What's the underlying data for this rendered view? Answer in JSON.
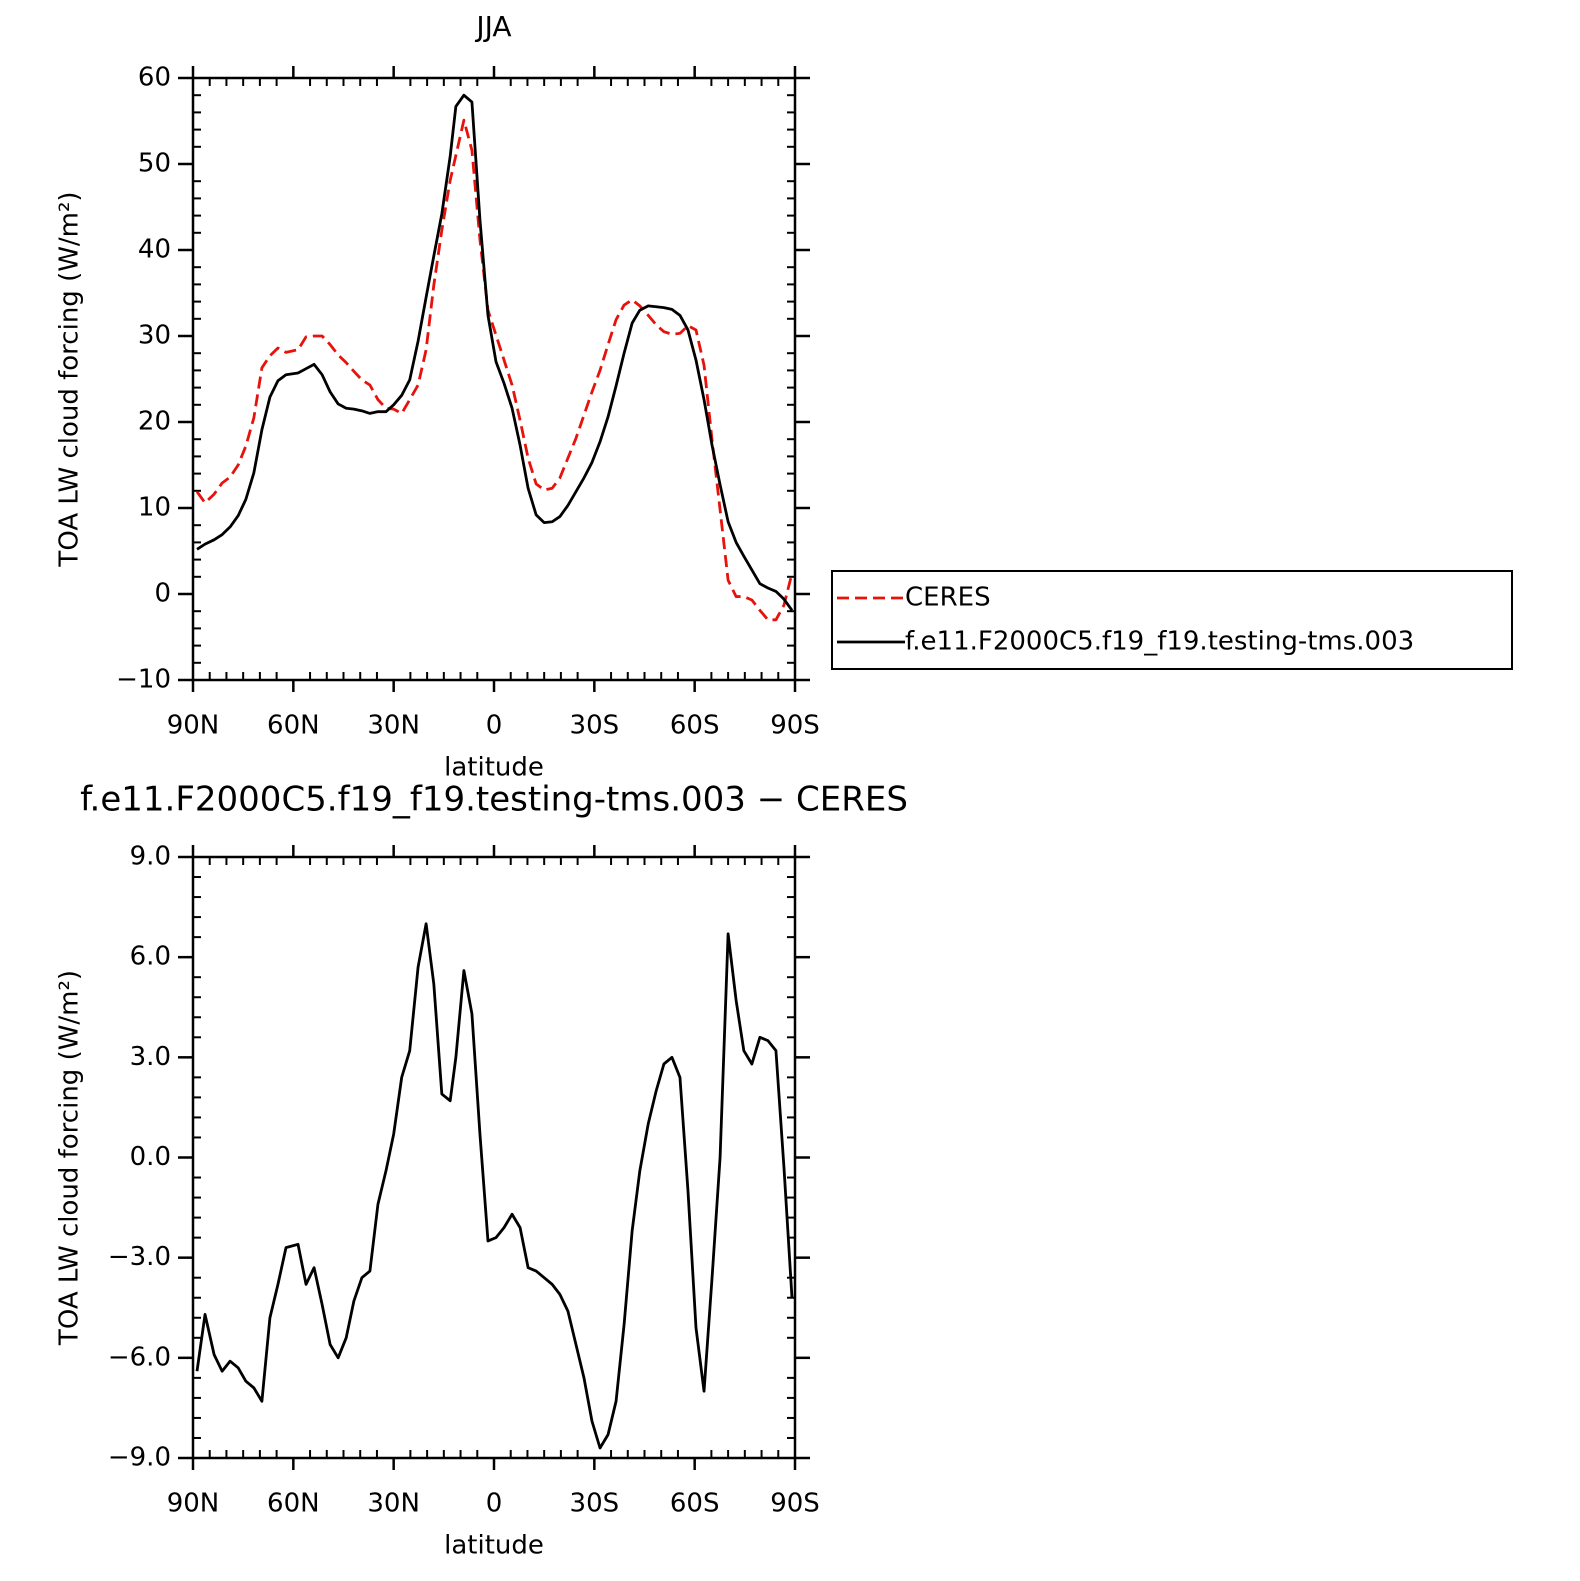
{
  "chart_data": [
    {
      "type": "line",
      "title": "JJA",
      "xlabel": "latitude",
      "ylabel": "TOA LW cloud forcing (W/m²)",
      "x": [
        88.8,
        86.4,
        83.7,
        81.3,
        78.9,
        76.5,
        74.2,
        71.8,
        69.4,
        67.0,
        64.6,
        62.2,
        58.6,
        56.2,
        53.8,
        51.4,
        49.0,
        46.6,
        44.2,
        41.9,
        39.5,
        37.1,
        34.7,
        32.3,
        30.0,
        27.6,
        25.2,
        22.7,
        20.3,
        18.0,
        15.6,
        13.1,
        11.4,
        9.0,
        6.6,
        4.2,
        1.8,
        -0.6,
        -3.0,
        -5.4,
        -7.8,
        -10.2,
        -12.6,
        -15.0,
        -17.4,
        -19.7,
        -22.1,
        -24.5,
        -26.9,
        -29.3,
        -31.7,
        -34.1,
        -36.5,
        -38.9,
        -41.3,
        -43.6,
        -46.1,
        -48.5,
        -50.8,
        -53.2,
        -55.6,
        -58.0,
        -60.4,
        -62.8,
        -65.2,
        -67.6,
        -70.0,
        -72.4,
        -74.7,
        -77.1,
        -79.5,
        -81.9,
        -84.3,
        -86.7,
        -89.1
      ],
      "xlim": [
        90,
        -90
      ],
      "xticks": [
        {
          "value": 90,
          "label": "90N"
        },
        {
          "value": 60,
          "label": "60N"
        },
        {
          "value": 30,
          "label": "30N"
        },
        0,
        {
          "value": -30,
          "label": "30S"
        },
        {
          "value": -60,
          "label": "60S"
        },
        {
          "value": -90,
          "label": "90S"
        }
      ],
      "ylim": [
        -10,
        60
      ],
      "yticks": [
        {
          "value": -10,
          "label": "−10"
        },
        0,
        10,
        20,
        30,
        40,
        50,
        60
      ],
      "legend": "right",
      "series": [
        {
          "name": "CERES",
          "color": "#e8120c",
          "dashed": true,
          "values": [
            11.9,
            10.6,
            11.6,
            12.9,
            13.6,
            15.0,
            17.2,
            20.5,
            26.3,
            27.7,
            28.6,
            28.1,
            28.4,
            29.9,
            30.0,
            30.0,
            29.0,
            27.8,
            26.9,
            25.9,
            24.9,
            24.3,
            22.6,
            21.6,
            21.5,
            21.0,
            22.6,
            24.3,
            28.4,
            35.9,
            42.3,
            48.1,
            51.0,
            55.1,
            51.6,
            41.2,
            33.0,
            30.1,
            27.2,
            24.3,
            20.2,
            15.8,
            12.8,
            12.1,
            12.3,
            13.5,
            15.8,
            18.1,
            20.8,
            23.5,
            26.0,
            29.0,
            31.9,
            33.6,
            34.2,
            33.5,
            32.4,
            31.3,
            30.5,
            30.2,
            30.3,
            31.2,
            30.7,
            26.6,
            17.9,
            9.8,
            1.6,
            -0.3,
            -0.3,
            -0.7,
            -1.9,
            -3.0,
            -3.0,
            -1.3,
            2.4
          ]
        },
        {
          "name": "f.e11.F2000C5.f19_f19.testing-tms.003",
          "color": "#000000",
          "dashed": false,
          "values": [
            5.2,
            5.8,
            6.3,
            6.9,
            7.8,
            9.1,
            11.0,
            14.1,
            19.1,
            22.9,
            24.8,
            25.5,
            25.7,
            26.2,
            26.7,
            25.5,
            23.5,
            22.1,
            21.6,
            21.5,
            21.3,
            21.0,
            21.2,
            21.2,
            22.0,
            23.1,
            24.9,
            29.4,
            34.5,
            39.3,
            44.2,
            50.9,
            56.7,
            58.0,
            57.2,
            43.5,
            32.4,
            27.0,
            24.5,
            21.6,
            17.3,
            12.3,
            9.2,
            8.3,
            8.4,
            9.0,
            10.3,
            11.9,
            13.5,
            15.3,
            17.7,
            20.6,
            24.2,
            28.0,
            31.5,
            33.0,
            33.5,
            33.4,
            33.3,
            33.1,
            32.4,
            30.7,
            27.2,
            22.6,
            17.3,
            12.7,
            8.4,
            6.0,
            4.4,
            2.8,
            1.2,
            0.7,
            0.3,
            -0.6,
            -1.9
          ]
        }
      ]
    },
    {
      "type": "line",
      "title": "f.e11.F2000C5.f19_f19.testing-tms.003 − CERES",
      "xlabel": "latitude",
      "ylabel": "TOA LW cloud forcing (W/m²)",
      "x": [
        88.8,
        86.4,
        83.7,
        81.3,
        78.9,
        76.5,
        74.2,
        71.8,
        69.4,
        67.0,
        64.6,
        62.2,
        58.6,
        56.2,
        53.8,
        51.4,
        49.0,
        46.6,
        44.2,
        41.9,
        39.5,
        37.1,
        34.7,
        32.3,
        30.0,
        27.6,
        25.2,
        22.7,
        20.3,
        18.0,
        15.6,
        13.1,
        11.4,
        9.0,
        6.6,
        4.2,
        1.8,
        -0.6,
        -3.0,
        -5.4,
        -7.8,
        -10.2,
        -12.6,
        -15.0,
        -17.4,
        -19.7,
        -22.1,
        -24.5,
        -26.9,
        -29.3,
        -31.7,
        -34.1,
        -36.5,
        -38.9,
        -41.3,
        -43.6,
        -46.1,
        -48.5,
        -50.8,
        -53.2,
        -55.6,
        -58.0,
        -60.4,
        -62.8,
        -65.2,
        -67.6,
        -70.0,
        -72.4,
        -74.7,
        -77.1,
        -79.5,
        -81.9,
        -84.3,
        -86.7,
        -89.1
      ],
      "xlim": [
        90,
        -90
      ],
      "xticks": [
        {
          "value": 90,
          "label": "90N"
        },
        {
          "value": 60,
          "label": "60N"
        },
        {
          "value": 30,
          "label": "30N"
        },
        0,
        {
          "value": -30,
          "label": "30S"
        },
        {
          "value": -60,
          "label": "60S"
        },
        {
          "value": -90,
          "label": "90S"
        }
      ],
      "ylim": [
        -9,
        9
      ],
      "yticks": [
        {
          "value": -9,
          "label": "−9.0"
        },
        {
          "value": -6,
          "label": "−6.0"
        },
        {
          "value": -3,
          "label": "−3.0"
        },
        {
          "value": 0,
          "label": "0.0"
        },
        {
          "value": 3,
          "label": "3.0"
        },
        {
          "value": 6,
          "label": "6.0"
        },
        {
          "value": 9,
          "label": "9.0"
        }
      ],
      "series": [
        {
          "color": "#000000",
          "dashed": false,
          "values": [
            -6.4,
            -4.7,
            -5.9,
            -6.4,
            -6.1,
            -6.3,
            -6.7,
            -6.9,
            -7.3,
            -4.8,
            -3.8,
            -2.7,
            -2.6,
            -3.8,
            -3.3,
            -4.4,
            -5.6,
            -6.0,
            -5.4,
            -4.3,
            -3.6,
            -3.4,
            -1.4,
            -0.4,
            0.7,
            2.4,
            3.2,
            5.7,
            7.0,
            5.2,
            1.9,
            1.7,
            3.0,
            5.6,
            4.3,
            0.7,
            -2.5,
            -2.4,
            -2.1,
            -1.7,
            -2.1,
            -3.3,
            -3.4,
            -3.6,
            -3.8,
            -4.1,
            -4.6,
            -5.6,
            -6.6,
            -7.9,
            -8.7,
            -8.3,
            -7.3,
            -5.0,
            -2.2,
            -0.4,
            1.0,
            2.0,
            2.8,
            3.0,
            2.4,
            -1.0,
            -5.1,
            -7.0,
            -3.6,
            0.0,
            6.7,
            4.7,
            3.2,
            2.8,
            3.6,
            3.5,
            3.2,
            -0.3,
            -4.2
          ]
        }
      ]
    }
  ]
}
